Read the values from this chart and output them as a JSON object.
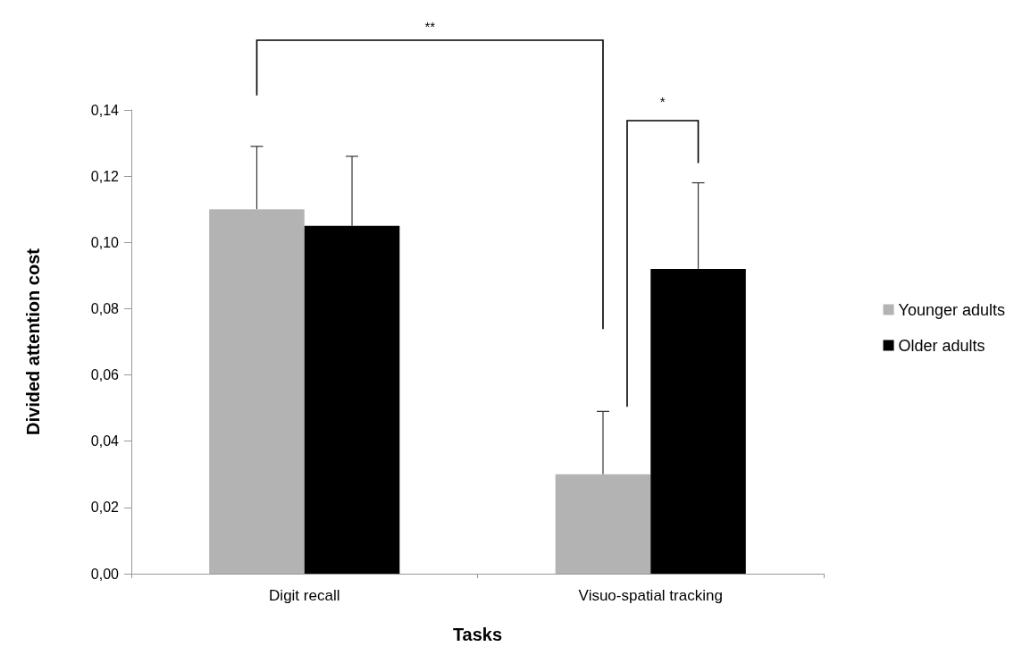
{
  "chart_data": {
    "type": "bar",
    "xlabel": "Tasks",
    "ylabel": "Divided attention cost",
    "categories": [
      "Digit recall",
      "Visuo-spatial tracking"
    ],
    "series": [
      {
        "name": "Younger adults",
        "color": "#b3b3b3",
        "values": [
          0.11,
          0.03
        ],
        "errors": [
          [
            0.11,
            0.129
          ],
          [
            0.03,
            0.049
          ]
        ]
      },
      {
        "name": "Older adults",
        "color": "#000000",
        "values": [
          0.105,
          0.092
        ],
        "errors": [
          [
            0.105,
            0.126
          ],
          [
            0.092,
            0.118
          ]
        ]
      }
    ],
    "ylim": [
      0,
      0.14
    ],
    "yticks": [
      {
        "value": 0,
        "label": "0,00"
      },
      {
        "value": 0.02,
        "label": "0,02"
      },
      {
        "value": 0.04,
        "label": "0,04"
      },
      {
        "value": 0.06,
        "label": "0,06"
      },
      {
        "value": 0.08,
        "label": "0,08"
      },
      {
        "value": 0.1,
        "label": "0,10"
      },
      {
        "value": 0.12,
        "label": "0,12"
      },
      {
        "value": 0.14,
        "label": "0,14"
      }
    ],
    "annotations": [
      "**",
      "*"
    ],
    "grid": false,
    "legend": "right"
  }
}
